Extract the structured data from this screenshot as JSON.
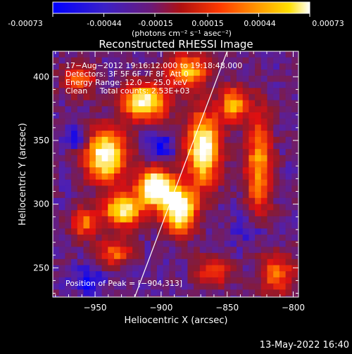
{
  "colorbar": {
    "tick_labels": [
      "-0.00073",
      "-0.00044",
      "-0.00015",
      "0.00015",
      "0.00044",
      "0.00073"
    ],
    "min": -0.00073,
    "max": 0.00073,
    "units_label": "(photons cm⁻² s⁻¹ asec⁻²)"
  },
  "timestamp": "13-May-2022 16:40",
  "chart_data": {
    "type": "heatmap",
    "title": "Reconstructed RHESSI Image",
    "xlabel": "Heliocentric X (arcsec)",
    "ylabel": "Heliocentric Y (arcsec)",
    "xlim": [
      -982,
      -796
    ],
    "ylim": [
      227,
      420
    ],
    "x_ticks": [
      -950,
      -900,
      -850,
      -800
    ],
    "y_ticks": [
      250,
      300,
      350,
      400
    ],
    "x_tick_labels": [
      "−950",
      "−900",
      "−850",
      "−800"
    ],
    "y_tick_labels": [
      "250",
      "300",
      "350",
      "400"
    ],
    "limb_line": [
      {
        "x": -920,
        "y": 227
      },
      {
        "x": -850,
        "y": 420
      }
    ],
    "annotations": [
      "17−Aug−2012 19:16:12.000 to 19:18:48.000",
      "Detectors: 3F 5F 6F 7F 8F, Att 0",
      "Energy Range: 12.0 − 25.0 keV",
      "Clean     Total counts: 2.53E+03"
    ],
    "peak_label": "Position of Peak = [−904,313]",
    "colormap": [
      "#0000ff",
      "#5020b0",
      "#8a1a2e",
      "#e01010",
      "#ff6a00",
      "#ffd400",
      "#ffffff"
    ],
    "blobs": [
      {
        "x": -942,
        "y": 338,
        "sx": 11,
        "sy": 14,
        "a": 0.85
      },
      {
        "x": -929,
        "y": 295,
        "sx": 10,
        "sy": 9,
        "a": 0.75
      },
      {
        "x": -912,
        "y": 380,
        "sx": 12,
        "sy": 10,
        "a": 0.8
      },
      {
        "x": -905,
        "y": 313,
        "sx": 9,
        "sy": 10,
        "a": 1.0
      },
      {
        "x": -886,
        "y": 296,
        "sx": 9,
        "sy": 13,
        "a": 0.9
      },
      {
        "x": -868,
        "y": 344,
        "sx": 9,
        "sy": 20,
        "a": 0.85
      },
      {
        "x": -880,
        "y": 405,
        "sx": 11,
        "sy": 9,
        "a": 0.6
      },
      {
        "x": -845,
        "y": 378,
        "sx": 7,
        "sy": 9,
        "a": 0.6
      },
      {
        "x": -826,
        "y": 330,
        "sx": 7,
        "sy": 30,
        "a": 0.55
      },
      {
        "x": -958,
        "y": 285,
        "sx": 7,
        "sy": 8,
        "a": 0.45
      },
      {
        "x": -935,
        "y": 262,
        "sx": 9,
        "sy": 7,
        "a": 0.45
      },
      {
        "x": -962,
        "y": 398,
        "sx": 9,
        "sy": 9,
        "a": 0.4
      },
      {
        "x": -812,
        "y": 245,
        "sx": 9,
        "sy": 11,
        "a": 0.45
      },
      {
        "x": -860,
        "y": 248,
        "sx": 9,
        "sy": 8,
        "a": 0.4
      }
    ],
    "dips": [
      {
        "x": -964,
        "y": 352,
        "sx": 6,
        "sy": 6,
        "a": 0.7
      },
      {
        "x": -900,
        "y": 345,
        "sx": 8,
        "sy": 8,
        "a": 0.5
      },
      {
        "x": -830,
        "y": 280,
        "sx": 9,
        "sy": 10,
        "a": 0.45
      },
      {
        "x": -955,
        "y": 240,
        "sx": 8,
        "sy": 8,
        "a": 0.5
      }
    ]
  }
}
